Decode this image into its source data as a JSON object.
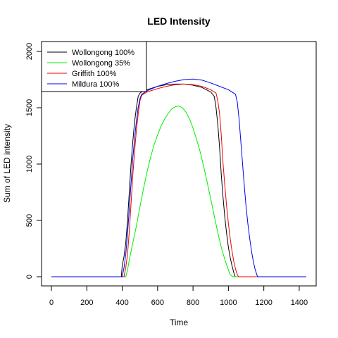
{
  "chart_data": {
    "type": "line",
    "title": "LED Intensity",
    "xlabel": "Time",
    "ylabel": "Sum of LED intensity",
    "xlim": [
      0,
      1440
    ],
    "ylim": [
      0,
      2000
    ],
    "xticks": [
      0,
      200,
      400,
      600,
      800,
      1000,
      1200,
      1400
    ],
    "yticks": [
      0,
      500,
      1000,
      1500,
      2000
    ],
    "grid": false,
    "legend_position": "top-left",
    "series": [
      {
        "name": "Wollongong 100%",
        "color": "#000000",
        "x": [
          0,
          395,
          400,
          410,
          420,
          430,
          440,
          450,
          460,
          470,
          480,
          490,
          500,
          510,
          520,
          540,
          560,
          600,
          650,
          700,
          750,
          800,
          850,
          900,
          920,
          930,
          940,
          950,
          960,
          970,
          980,
          990,
          1000,
          1010,
          1020,
          1030,
          1035,
          1040,
          1440
        ],
        "y": [
          0,
          0,
          100,
          180,
          300,
          500,
          750,
          1000,
          1200,
          1380,
          1500,
          1600,
          1630,
          1640,
          1650,
          1660,
          1670,
          1690,
          1705,
          1710,
          1710,
          1700,
          1680,
          1640,
          1600,
          1500,
          1350,
          1150,
          900,
          700,
          520,
          380,
          260,
          170,
          100,
          40,
          10,
          0,
          0
        ]
      },
      {
        "name": "Wollongong 35%",
        "color": "#00ee00",
        "x": [
          0,
          420,
          430,
          440,
          460,
          480,
          500,
          520,
          540,
          560,
          580,
          600,
          620,
          640,
          660,
          680,
          700,
          720,
          740,
          760,
          780,
          800,
          820,
          840,
          860,
          880,
          900,
          920,
          940,
          960,
          980,
          1000,
          1010,
          1020,
          1025,
          1440
        ],
        "y": [
          0,
          0,
          60,
          150,
          300,
          450,
          620,
          780,
          930,
          1060,
          1170,
          1260,
          1340,
          1400,
          1450,
          1490,
          1510,
          1515,
          1500,
          1460,
          1400,
          1320,
          1220,
          1110,
          980,
          840,
          690,
          540,
          390,
          260,
          150,
          60,
          20,
          5,
          0,
          0
        ]
      },
      {
        "name": "Griffith 100%",
        "color": "#ee0000",
        "x": [
          0,
          410,
          420,
          430,
          440,
          450,
          460,
          470,
          480,
          490,
          500,
          510,
          520,
          540,
          560,
          600,
          650,
          700,
          750,
          800,
          850,
          900,
          930,
          940,
          950,
          960,
          970,
          980,
          990,
          1000,
          1010,
          1020,
          1030,
          1040,
          1050,
          1055,
          1060,
          1440
        ],
        "y": [
          0,
          0,
          80,
          200,
          400,
          650,
          900,
          1120,
          1300,
          1440,
          1560,
          1610,
          1620,
          1640,
          1650,
          1670,
          1690,
          1705,
          1710,
          1705,
          1690,
          1660,
          1630,
          1560,
          1450,
          1250,
          1000,
          800,
          620,
          470,
          340,
          230,
          140,
          70,
          20,
          5,
          0,
          0
        ]
      },
      {
        "name": "Mildura 100%",
        "color": "#0000ee",
        "x": [
          0,
          400,
          410,
          420,
          430,
          440,
          450,
          460,
          470,
          480,
          490,
          500,
          510,
          520,
          540,
          560,
          600,
          650,
          700,
          750,
          800,
          850,
          900,
          950,
          1000,
          1040,
          1050,
          1060,
          1070,
          1080,
          1090,
          1100,
          1110,
          1120,
          1130,
          1140,
          1150,
          1160,
          1165,
          1440
        ],
        "y": [
          0,
          0,
          80,
          200,
          380,
          600,
          830,
          1050,
          1230,
          1380,
          1500,
          1580,
          1620,
          1630,
          1650,
          1665,
          1690,
          1715,
          1735,
          1750,
          1755,
          1745,
          1720,
          1690,
          1660,
          1620,
          1550,
          1400,
          1200,
          1000,
          800,
          620,
          470,
          340,
          230,
          140,
          70,
          20,
          0,
          0
        ]
      }
    ]
  }
}
